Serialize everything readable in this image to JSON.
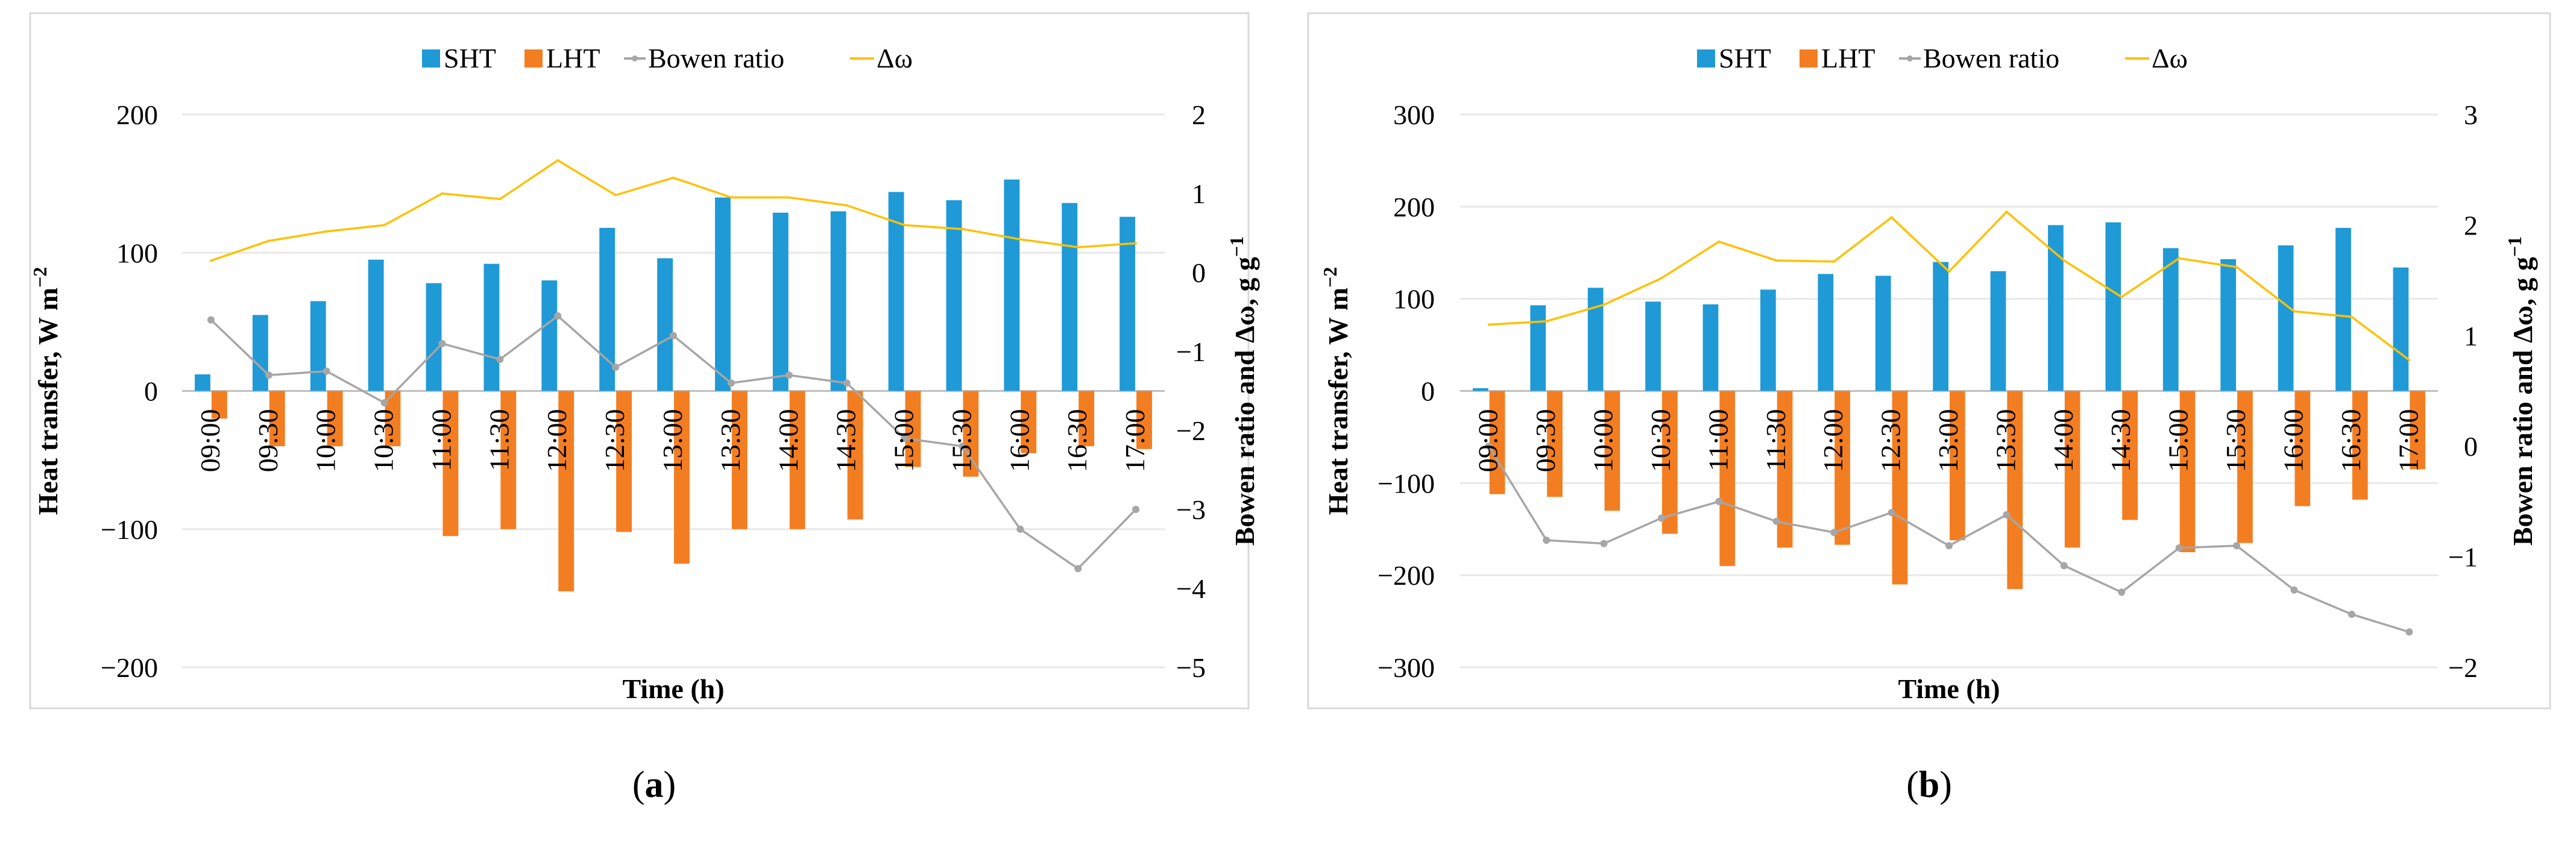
{
  "colors": {
    "sht": "#1f9ad6",
    "lht": "#f37e22",
    "bowen": "#a6a6a6",
    "dw": "#ffc000"
  },
  "chart_data": [
    {
      "type": "bar+line",
      "panel_label": {
        "open": "(",
        "letter": "a",
        "close": ")"
      },
      "xlabel": "Time (h)",
      "ylabel": "Heat transfer, W m",
      "ylabel_sup": "−2",
      "y2label": "Bowen ratio and Δω, g g",
      "y2label_sup": "−1",
      "ylim": [
        -200,
        200
      ],
      "yticks": [
        "200",
        "100",
        "0",
        "−100",
        "−200"
      ],
      "yticks_values": [
        200,
        100,
        0,
        -100,
        -200
      ],
      "y2lim": [
        -5,
        2
      ],
      "y2ticks": [
        "2",
        "1",
        "0",
        "−1",
        "−2",
        "−3",
        "−4",
        "−5"
      ],
      "y2ticks_values": [
        2,
        1,
        0,
        -1,
        -2,
        -3,
        -4,
        -5
      ],
      "categories": [
        "09:00",
        "09:30",
        "10:00",
        "10:30",
        "11:00",
        "11:30",
        "12:00",
        "12:30",
        "13:00",
        "13:30",
        "14:00",
        "14:30",
        "15:00",
        "15:30",
        "16:00",
        "16:30",
        "17:00"
      ],
      "legend": [
        "SHT",
        "LHT",
        "Bowen ratio",
        "Δω"
      ],
      "series": [
        {
          "name": "SHT",
          "axis": "left",
          "values": [
            12,
            55,
            65,
            95,
            78,
            92,
            80,
            118,
            96,
            140,
            129,
            130,
            144,
            138,
            153,
            136,
            126
          ]
        },
        {
          "name": "LHT",
          "axis": "left",
          "values": [
            -20,
            -40,
            -40,
            -40,
            -105,
            -100,
            -145,
            -102,
            -125,
            -100,
            -100,
            -93,
            -55,
            -62,
            -45,
            -40,
            -42
          ]
        },
        {
          "name": "Bowen ratio",
          "axis": "right",
          "values": [
            -0.6,
            -1.3,
            -1.25,
            -1.65,
            -0.9,
            -1.1,
            -0.55,
            -1.2,
            -0.8,
            -1.4,
            -1.3,
            -1.4,
            -2.1,
            -2.2,
            -3.25,
            -3.75,
            -3.0
          ]
        },
        {
          "name": "Δω",
          "axis": "right",
          "values": [
            0.15,
            0.4,
            0.52,
            0.6,
            1.0,
            0.93,
            1.42,
            0.98,
            1.2,
            0.95,
            0.95,
            0.85,
            0.6,
            0.55,
            0.42,
            0.32,
            0.37
          ]
        }
      ]
    },
    {
      "type": "bar+line",
      "panel_label": {
        "open": "(",
        "letter": "b",
        "close": ")"
      },
      "xlabel": "Time (h)",
      "ylabel": "Heat transfer, W m",
      "ylabel_sup": "−2",
      "y2label": "Bowen ratio and Δω, g g",
      "y2label_sup": "−1",
      "ylim": [
        -300,
        300
      ],
      "yticks": [
        "300",
        "200",
        "100",
        "0",
        "−100",
        "−200",
        "−300"
      ],
      "yticks_values": [
        300,
        200,
        100,
        0,
        -100,
        -200,
        -300
      ],
      "y2lim": [
        -2,
        3
      ],
      "y2ticks": [
        "3",
        "2",
        "1",
        "0",
        "−1",
        "−2"
      ],
      "y2ticks_values": [
        3,
        2,
        1,
        0,
        -1,
        -2
      ],
      "categories": [
        "09:00",
        "09:30",
        "10:00",
        "10:30",
        "11:00",
        "11:30",
        "12:00",
        "12:30",
        "13:00",
        "13:30",
        "14:00",
        "14:30",
        "15:00",
        "15:30",
        "16:00",
        "16:30",
        "17:00"
      ],
      "legend": [
        "SHT",
        "LHT",
        "Bowen ratio",
        "Δω"
      ],
      "series": [
        {
          "name": "SHT",
          "axis": "left",
          "values": [
            3,
            93,
            112,
            97,
            94,
            110,
            127,
            125,
            140,
            130,
            180,
            183,
            155,
            143,
            158,
            177,
            134
          ]
        },
        {
          "name": "LHT",
          "axis": "left",
          "values": [
            -112,
            -115,
            -130,
            -155,
            -190,
            -170,
            -167,
            -210,
            -162,
            -215,
            -170,
            -140,
            -175,
            -165,
            -125,
            -118,
            -85
          ]
        },
        {
          "name": "Bowen ratio",
          "axis": "right",
          "values": [
            0.0,
            -0.85,
            -0.88,
            -0.65,
            -0.5,
            -0.68,
            -0.78,
            -0.6,
            -0.9,
            -0.62,
            -1.08,
            -1.32,
            -0.92,
            -0.9,
            -1.3,
            -1.52,
            -1.68
          ]
        },
        {
          "name": "Δω",
          "axis": "right",
          "values": [
            1.1,
            1.13,
            1.28,
            1.52,
            1.85,
            1.68,
            1.67,
            2.07,
            1.58,
            2.12,
            1.68,
            1.35,
            1.7,
            1.62,
            1.22,
            1.17,
            0.78
          ]
        }
      ]
    }
  ]
}
